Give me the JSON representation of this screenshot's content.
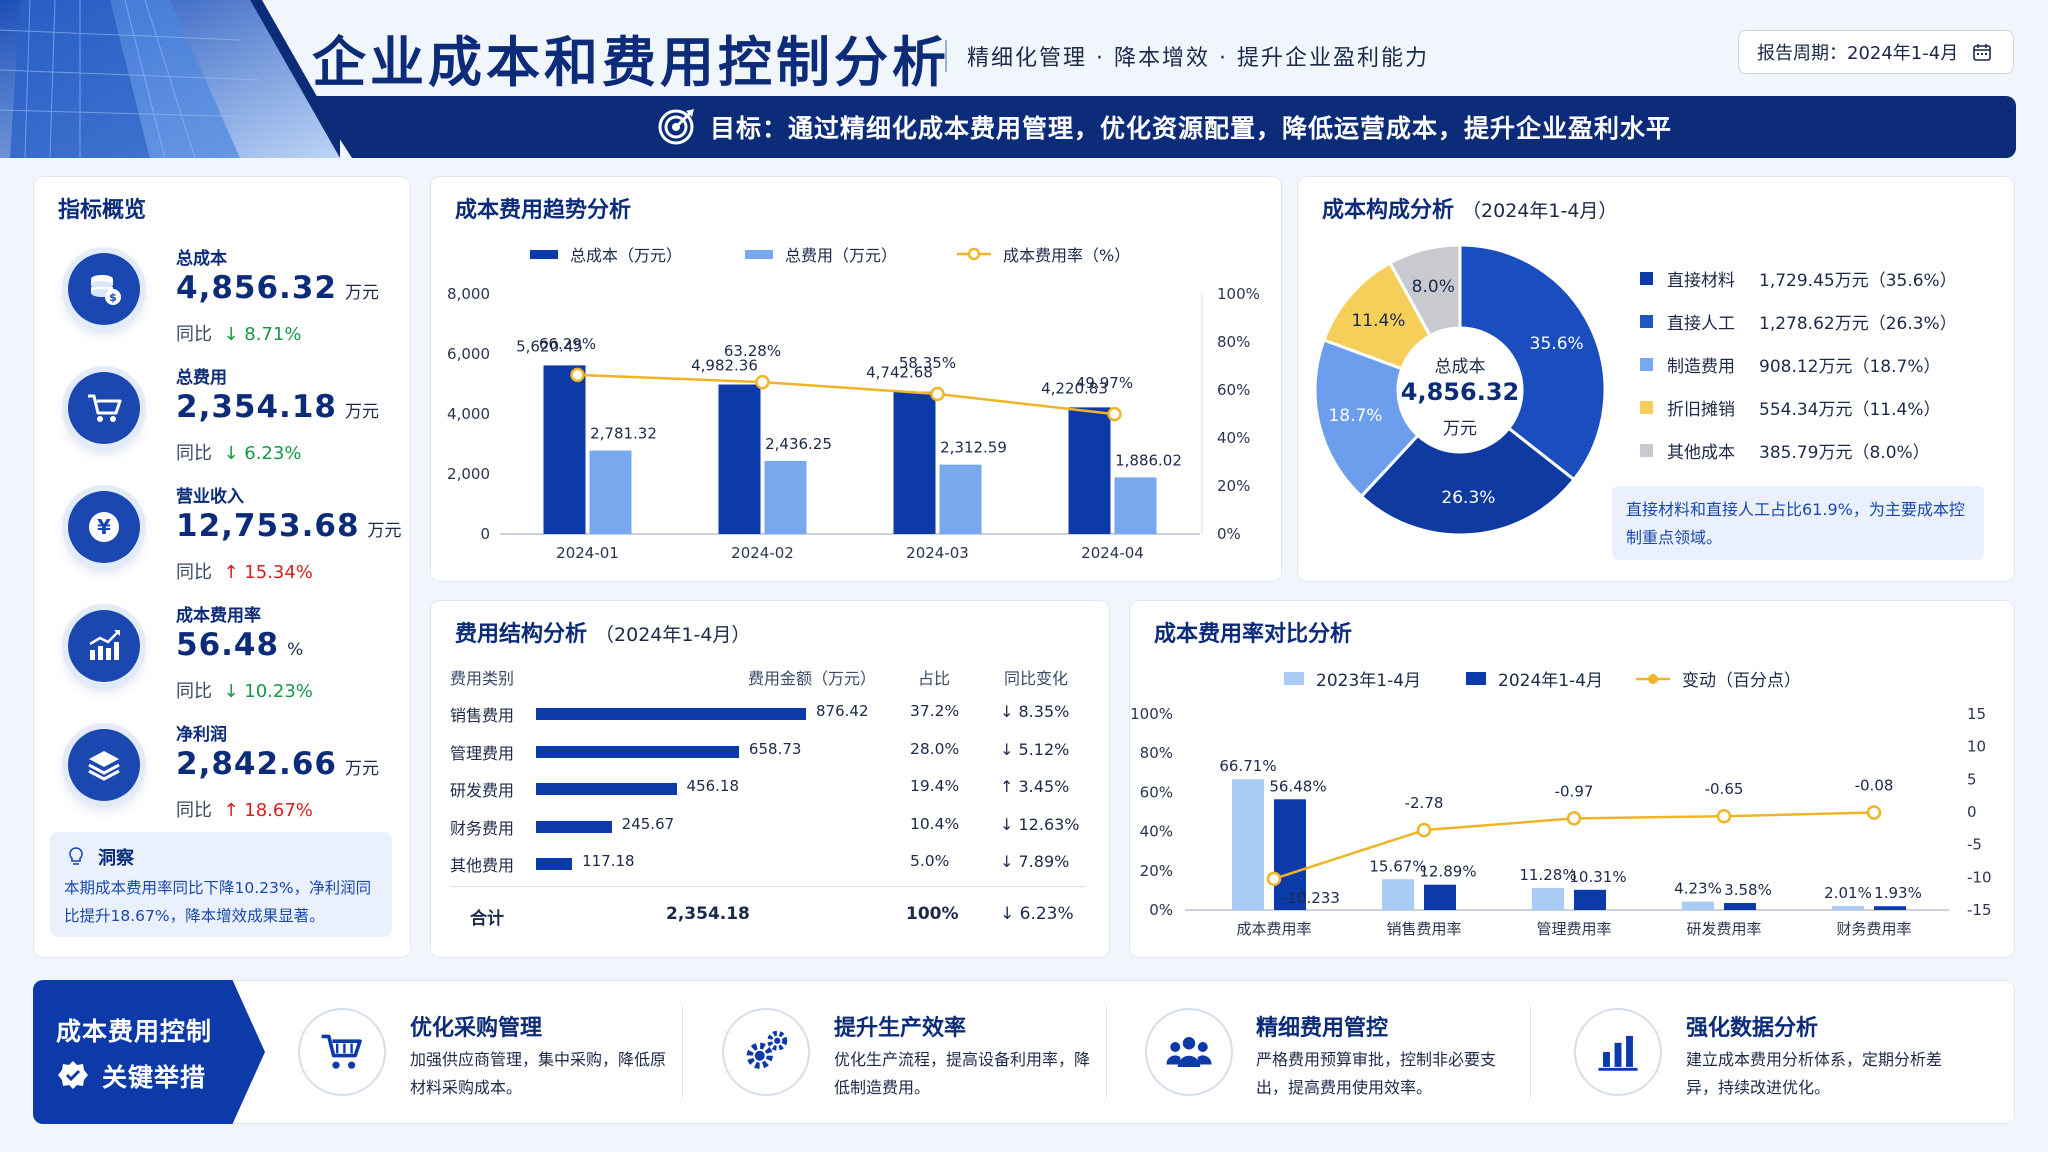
{
  "header": {
    "title": "企业成本和费用控制分析",
    "subtitle": "精细化管理 · 降本增效 · 提升企业盈利能力",
    "period": "报告周期：2024年1-4月",
    "banner": "目标：通过精细化成本费用管理，优化资源配置，降低运营成本，提升企业盈利水平"
  },
  "kpi": {
    "title": "指标概览",
    "items": [
      {
        "label": "总成本",
        "value": "4,856.32",
        "unit": "万元",
        "yoy_label": "同比",
        "yoy": "↓ 8.71%"
      },
      {
        "label": "总费用",
        "value": "2,354.18",
        "unit": "万元",
        "yoy_label": "同比",
        "yoy": "↓ 6.23%"
      },
      {
        "label": "营业收入",
        "value": "12,753.68",
        "unit": "万元",
        "yoy_label": "同比",
        "yoy": "↑ 15.34%"
      },
      {
        "label": "成本费用率",
        "value": "56.48",
        "unit": "%",
        "yoy_label": "同比",
        "yoy": "↓ 10.23%"
      },
      {
        "label": "净利润",
        "value": "2,842.66",
        "unit": "万元",
        "yoy_label": "同比",
        "yoy": "↑ 18.67%"
      }
    ],
    "insight_title": "洞察",
    "insight_text": "本期成本费用率同比下降10.23%，净利润同比提升18.67%，降本增效成果显著。"
  },
  "trend": {
    "title": "成本费用趋势分析",
    "legend": [
      "总成本（万元）",
      "总费用（万元）",
      "成本费用率（%）"
    ],
    "y_left_ticks": [
      "8,000",
      "6,000",
      "4,000",
      "2,000",
      "0"
    ],
    "y_right_ticks": [
      "100%",
      "80%",
      "60%",
      "40%",
      "20%",
      "0%"
    ],
    "cost_labels": [
      "5,620.45",
      "4,982.36",
      "4,742.68",
      "4,220.83"
    ],
    "expense_labels": [
      "2,781.32",
      "2,436.25",
      "2,312.59",
      "1,886.02"
    ],
    "rate_labels": [
      "66.29%",
      "63.28%",
      "58.35%",
      "49.97%"
    ]
  },
  "composition": {
    "title": "成本构成分析",
    "title_note": "（2024年1-4月）",
    "center_label": "总成本",
    "center_value": "4,856.32",
    "center_unit": "万元",
    "slice_labels": [
      "35.6%",
      "26.3%",
      "18.7%",
      "11.4%",
      "8.0%"
    ],
    "rows": [
      {
        "name": "直接材料",
        "value": "1,729.45万元（35.6%）"
      },
      {
        "name": "直接人工",
        "value": "1,278.62万元（26.3%）"
      },
      {
        "name": "制造费用",
        "value": "908.12万元（18.7%）"
      },
      {
        "name": "折旧摊销",
        "value": "554.34万元（11.4%）"
      },
      {
        "name": "其他成本",
        "value": "385.79万元（8.0%）"
      }
    ],
    "note": "直接材料和直接人工占比61.9%，为主要成本控制重点领域。"
  },
  "expense": {
    "title": "费用结构分析",
    "title_note": "（2024年1-4月）",
    "headers": [
      "费用类别",
      "费用金额（万元）",
      "占比",
      "同比变化"
    ],
    "rows": [
      {
        "name": "销售费用",
        "amount": "876.42",
        "share": "37.2%",
        "change": "↓ 8.35%"
      },
      {
        "name": "管理费用",
        "amount": "658.73",
        "share": "28.0%",
        "change": "↓ 5.12%"
      },
      {
        "name": "研发费用",
        "amount": "456.18",
        "share": "19.4%",
        "change": "↑ 3.45%"
      },
      {
        "name": "财务费用",
        "amount": "245.67",
        "share": "10.4%",
        "change": "↓ 12.63%"
      },
      {
        "name": "其他费用",
        "amount": "117.18",
        "share": "5.0%",
        "change": "↓ 7.89%"
      }
    ],
    "total": {
      "name": "合计",
      "amount": "2,354.18",
      "share": "100%",
      "change": "↓ 6.23%"
    }
  },
  "rate_compare": {
    "title": "成本费用率对比分析",
    "legend": [
      "2023年1-4月",
      "2024年1-4月",
      "变动（百分点）"
    ],
    "y_left_ticks": [
      "100%",
      "80%",
      "60%",
      "40%",
      "20%",
      "0%"
    ],
    "y_right_ticks": [
      "15",
      "10",
      "5",
      "0",
      "-5",
      "-10",
      "-15"
    ],
    "labels_2023": [
      "66.71%",
      "15.67%",
      "11.28%",
      "4.23%",
      "2.01%"
    ],
    "labels_2024": [
      "56.48%",
      "12.89%",
      "10.31%",
      "3.58%",
      "1.93%"
    ],
    "change_labels": [
      "-10.233",
      "-2.78",
      "-0.97",
      "-0.65",
      "-0.08"
    ]
  },
  "measures": {
    "block_title_1": "成本费用控制",
    "block_title_2": "关键举措",
    "items": [
      {
        "title": "优化采购管理",
        "desc": "加强供应商管理，集中采购，降低原材料采购成本。"
      },
      {
        "title": "提升生产效率",
        "desc": "优化生产流程，提高设备利用率，降低制造费用。"
      },
      {
        "title": "精细费用管控",
        "desc": "严格费用预算审批，控制非必要支出，提高费用使用效率。"
      },
      {
        "title": "强化数据分析",
        "desc": "建立成本费用分析体系，定期分析差异，持续改进优化。"
      }
    ]
  },
  "colors": {
    "navy": "#0c2c7a",
    "blue": "#0c3aa8",
    "mid_blue": "#3b73d9",
    "light_blue": "#78a8ee",
    "yellow": "#f0b429",
    "gray": "#c8cacf",
    "down": "#169848",
    "up": "#d62020"
  },
  "chart_data": [
    {
      "type": "bar",
      "title": "成本费用趋势分析",
      "categories": [
        "2024-01",
        "2024-02",
        "2024-03",
        "2024-04"
      ],
      "series": [
        {
          "name": "总成本（万元）",
          "values": [
            5620.45,
            4982.36,
            4742.68,
            4220.83
          ],
          "axis": "left"
        },
        {
          "name": "总费用（万元）",
          "values": [
            2781.32,
            2436.25,
            2312.59,
            1886.02
          ],
          "axis": "left"
        },
        {
          "name": "成本费用率（%）",
          "type": "line",
          "values": [
            66.29,
            63.28,
            58.35,
            49.97
          ],
          "axis": "right"
        }
      ],
      "ylim_left": [
        0,
        8000
      ],
      "ylim_right": [
        0,
        100
      ],
      "grid": false,
      "legend": "top"
    },
    {
      "type": "pie",
      "title": "成本构成分析",
      "labels": [
        "直接材料",
        "直接人工",
        "制造费用",
        "折旧摊销",
        "其他成本"
      ],
      "values": [
        35.6,
        26.3,
        18.7,
        11.4,
        8.0
      ],
      "donut": true
    },
    {
      "type": "bar",
      "title": "费用结构分析",
      "orientation": "horizontal",
      "categories": [
        "销售费用",
        "管理费用",
        "研发费用",
        "财务费用",
        "其他费用"
      ],
      "values": [
        876.42,
        658.73,
        456.18,
        245.67,
        117.18
      ]
    },
    {
      "type": "bar",
      "title": "成本费用率对比分析",
      "categories": [
        "成本费用率",
        "销售费用率",
        "管理费用率",
        "研发费用率",
        "财务费用率"
      ],
      "series": [
        {
          "name": "2023年1-4月",
          "values": [
            66.71,
            15.67,
            11.28,
            4.23,
            2.01
          ],
          "axis": "left"
        },
        {
          "name": "2024年1-4月",
          "values": [
            56.48,
            12.89,
            10.31,
            3.58,
            1.93
          ],
          "axis": "left"
        },
        {
          "name": "变动（百分点）",
          "type": "line",
          "values": [
            -10.233,
            -2.78,
            -0.97,
            -0.65,
            -0.08
          ],
          "axis": "right"
        }
      ],
      "ylim_left": [
        0,
        100
      ],
      "ylim_right": [
        -15,
        15
      ],
      "legend": "top"
    }
  ]
}
